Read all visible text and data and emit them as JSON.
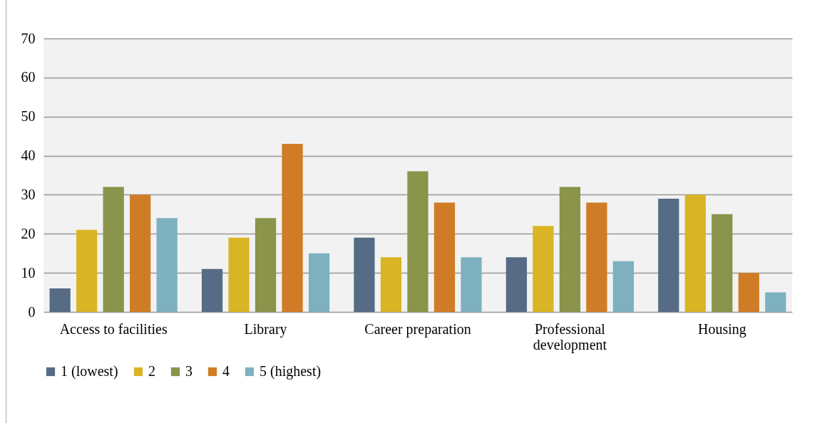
{
  "chart_data": {
    "type": "bar",
    "categories": [
      "Access to facilities",
      "Library",
      "Career preparation",
      "Professional development",
      "Housing"
    ],
    "series": [
      {
        "name": "1 (lowest)",
        "color": "#566b86",
        "values": [
          6,
          11,
          19,
          14,
          29
        ]
      },
      {
        "name": "2",
        "color": "#d9b526",
        "values": [
          21,
          19,
          14,
          22,
          30
        ]
      },
      {
        "name": "3",
        "color": "#8a944a",
        "values": [
          32,
          24,
          36,
          32,
          25
        ]
      },
      {
        "name": "4",
        "color": "#d07c26",
        "values": [
          30,
          43,
          28,
          28,
          10
        ]
      },
      {
        "name": "5 (highest)",
        "color": "#7eb1c0",
        "values": [
          24,
          15,
          14,
          13,
          5
        ]
      }
    ],
    "ylim": [
      0,
      70
    ],
    "yticks": [
      0,
      10,
      20,
      30,
      40,
      50,
      60,
      70
    ],
    "grid": "y",
    "legend": "bottom"
  }
}
